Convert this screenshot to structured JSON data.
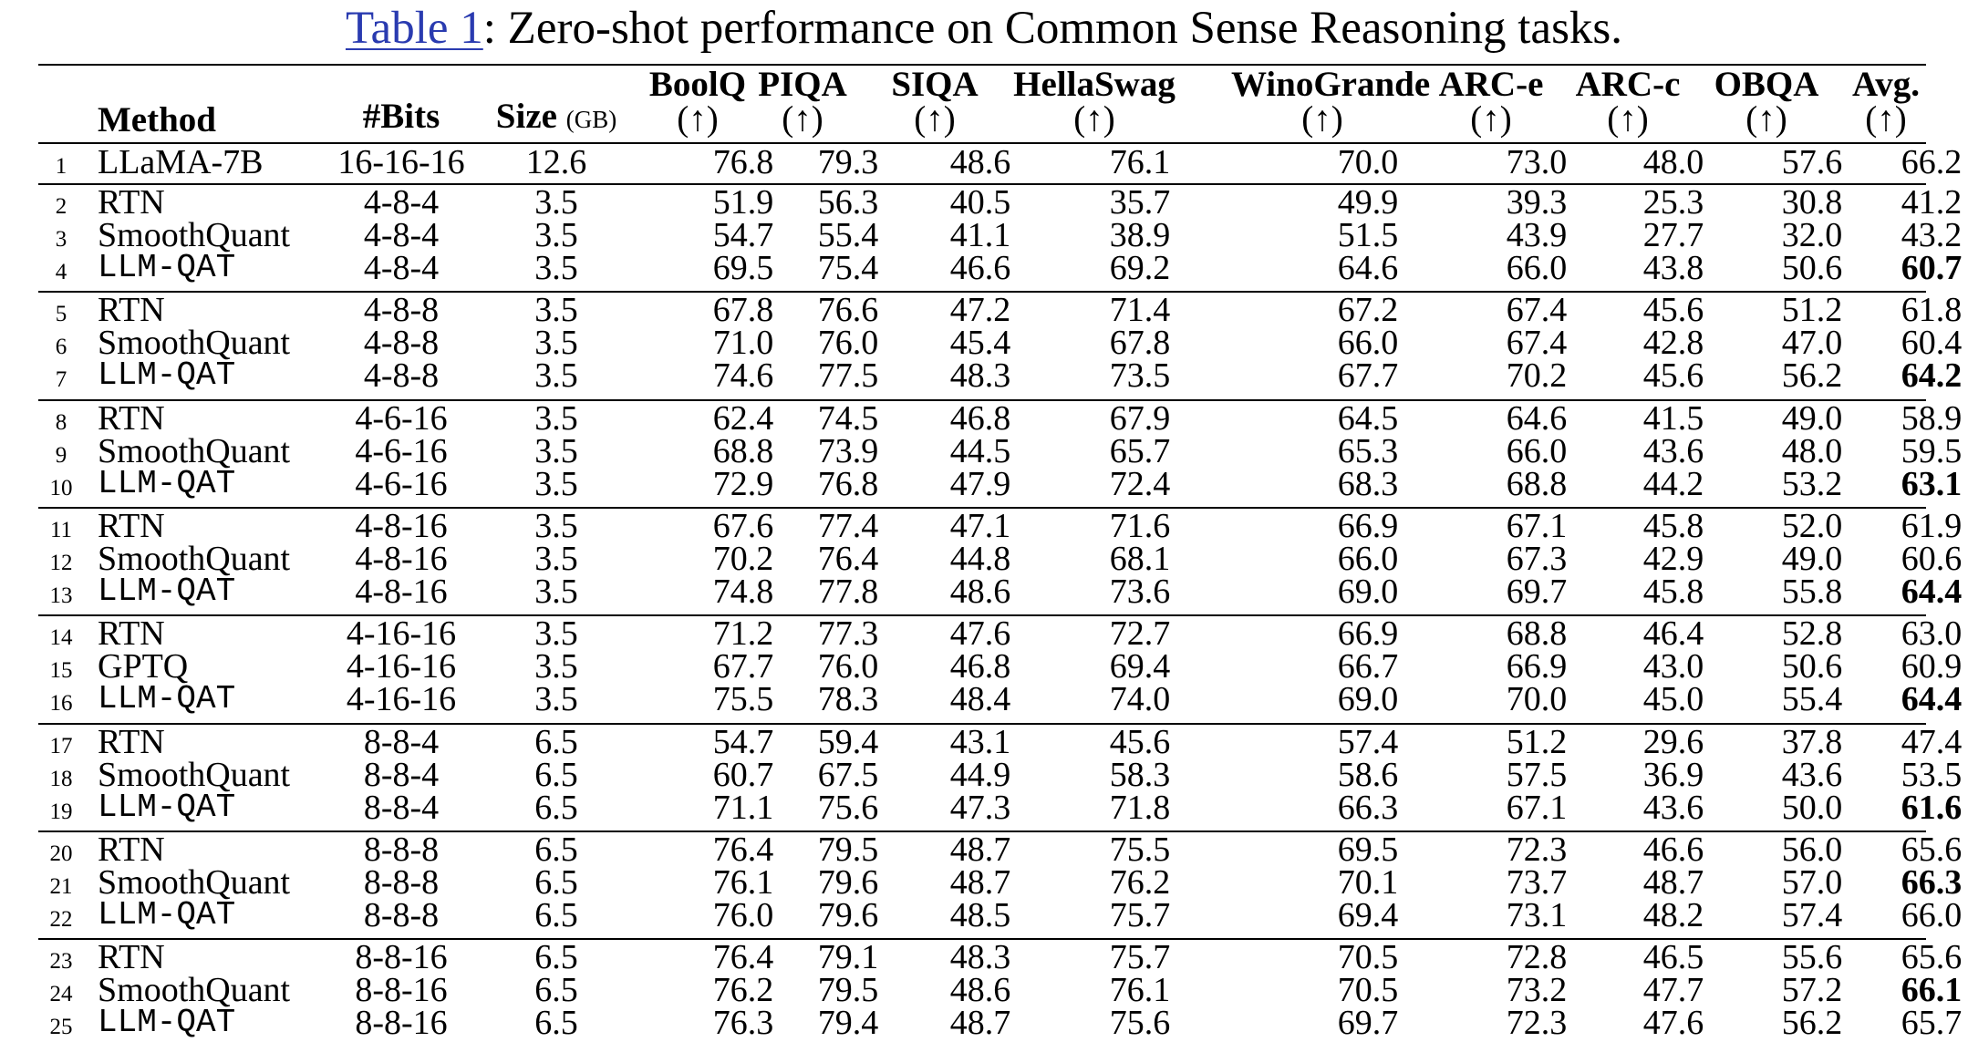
{
  "caption": {
    "ref": "Table 1",
    "text": ": Zero-shot performance on Common Sense Reasoning tasks."
  },
  "header": {
    "method": "Method",
    "bits": "#Bits",
    "size": "Size",
    "size_unit": "(GB)",
    "tasks": [
      "BoolQ",
      "PIQA",
      "SIQA",
      "HellaSwag",
      "WinoGrande",
      "ARC-e",
      "ARC-c",
      "OBQA",
      "Avg."
    ],
    "arrow": "(↑)"
  },
  "rows": [
    {
      "n": "1",
      "method": "LLaMA-7B",
      "mono": false,
      "bits": "16-16-16",
      "size": "12.6",
      "vals": [
        "76.8",
        "79.3",
        "48.6",
        "76.1",
        "70.0",
        "73.0",
        "48.0",
        "57.6",
        "66.2"
      ],
      "bold_avg": false
    },
    {
      "n": "2",
      "method": "RTN",
      "mono": false,
      "bits": "4-8-4",
      "size": "3.5",
      "vals": [
        "51.9",
        "56.3",
        "40.5",
        "35.7",
        "49.9",
        "39.3",
        "25.3",
        "30.8",
        "41.2"
      ],
      "bold_avg": false
    },
    {
      "n": "3",
      "method": "SmoothQuant",
      "mono": false,
      "bits": "4-8-4",
      "size": "3.5",
      "vals": [
        "54.7",
        "55.4",
        "41.1",
        "38.9",
        "51.5",
        "43.9",
        "27.7",
        "32.0",
        "43.2"
      ],
      "bold_avg": false
    },
    {
      "n": "4",
      "method": "LLM-QAT",
      "mono": true,
      "bits": "4-8-4",
      "size": "3.5",
      "vals": [
        "69.5",
        "75.4",
        "46.6",
        "69.2",
        "64.6",
        "66.0",
        "43.8",
        "50.6",
        "60.7"
      ],
      "bold_avg": true
    },
    {
      "n": "5",
      "method": "RTN",
      "mono": false,
      "bits": "4-8-8",
      "size": "3.5",
      "vals": [
        "67.8",
        "76.6",
        "47.2",
        "71.4",
        "67.2",
        "67.4",
        "45.6",
        "51.2",
        "61.8"
      ],
      "bold_avg": false
    },
    {
      "n": "6",
      "method": "SmoothQuant",
      "mono": false,
      "bits": "4-8-8",
      "size": "3.5",
      "vals": [
        "71.0",
        "76.0",
        "45.4",
        "67.8",
        "66.0",
        "67.4",
        "42.8",
        "47.0",
        "60.4"
      ],
      "bold_avg": false
    },
    {
      "n": "7",
      "method": "LLM-QAT",
      "mono": true,
      "bits": "4-8-8",
      "size": "3.5",
      "vals": [
        "74.6",
        "77.5",
        "48.3",
        "73.5",
        "67.7",
        "70.2",
        "45.6",
        "56.2",
        "64.2"
      ],
      "bold_avg": true
    },
    {
      "n": "8",
      "method": "RTN",
      "mono": false,
      "bits": "4-6-16",
      "size": "3.5",
      "vals": [
        "62.4",
        "74.5",
        "46.8",
        "67.9",
        "64.5",
        "64.6",
        "41.5",
        "49.0",
        "58.9"
      ],
      "bold_avg": false
    },
    {
      "n": "9",
      "method": "SmoothQuant",
      "mono": false,
      "bits": "4-6-16",
      "size": "3.5",
      "vals": [
        "68.8",
        "73.9",
        "44.5",
        "65.7",
        "65.3",
        "66.0",
        "43.6",
        "48.0",
        "59.5"
      ],
      "bold_avg": false
    },
    {
      "n": "10",
      "method": "LLM-QAT",
      "mono": true,
      "bits": "4-6-16",
      "size": "3.5",
      "vals": [
        "72.9",
        "76.8",
        "47.9",
        "72.4",
        "68.3",
        "68.8",
        "44.2",
        "53.2",
        "63.1"
      ],
      "bold_avg": true
    },
    {
      "n": "11",
      "method": "RTN",
      "mono": false,
      "bits": "4-8-16",
      "size": "3.5",
      "vals": [
        "67.6",
        "77.4",
        "47.1",
        "71.6",
        "66.9",
        "67.1",
        "45.8",
        "52.0",
        "61.9"
      ],
      "bold_avg": false
    },
    {
      "n": "12",
      "method": "SmoothQuant",
      "mono": false,
      "bits": "4-8-16",
      "size": "3.5",
      "vals": [
        "70.2",
        "76.4",
        "44.8",
        "68.1",
        "66.0",
        "67.3",
        "42.9",
        "49.0",
        "60.6"
      ],
      "bold_avg": false
    },
    {
      "n": "13",
      "method": "LLM-QAT",
      "mono": true,
      "bits": "4-8-16",
      "size": "3.5",
      "vals": [
        "74.8",
        "77.8",
        "48.6",
        "73.6",
        "69.0",
        "69.7",
        "45.8",
        "55.8",
        "64.4"
      ],
      "bold_avg": true
    },
    {
      "n": "14",
      "method": "RTN",
      "mono": false,
      "bits": "4-16-16",
      "size": "3.5",
      "vals": [
        "71.2",
        "77.3",
        "47.6",
        "72.7",
        "66.9",
        "68.8",
        "46.4",
        "52.8",
        "63.0"
      ],
      "bold_avg": false
    },
    {
      "n": "15",
      "method": "GPTQ",
      "mono": false,
      "bits": "4-16-16",
      "size": "3.5",
      "vals": [
        "67.7",
        "76.0",
        "46.8",
        "69.4",
        "66.7",
        "66.9",
        "43.0",
        "50.6",
        "60.9"
      ],
      "bold_avg": false
    },
    {
      "n": "16",
      "method": "LLM-QAT",
      "mono": true,
      "bits": "4-16-16",
      "size": "3.5",
      "vals": [
        "75.5",
        "78.3",
        "48.4",
        "74.0",
        "69.0",
        "70.0",
        "45.0",
        "55.4",
        "64.4"
      ],
      "bold_avg": true
    },
    {
      "n": "17",
      "method": "RTN",
      "mono": false,
      "bits": "8-8-4",
      "size": "6.5",
      "vals": [
        "54.7",
        "59.4",
        "43.1",
        "45.6",
        "57.4",
        "51.2",
        "29.6",
        "37.8",
        "47.4"
      ],
      "bold_avg": false
    },
    {
      "n": "18",
      "method": "SmoothQuant",
      "mono": false,
      "bits": "8-8-4",
      "size": "6.5",
      "vals": [
        "60.7",
        "67.5",
        "44.9",
        "58.3",
        "58.6",
        "57.5",
        "36.9",
        "43.6",
        "53.5"
      ],
      "bold_avg": false
    },
    {
      "n": "19",
      "method": "LLM-QAT",
      "mono": true,
      "bits": "8-8-4",
      "size": "6.5",
      "vals": [
        "71.1",
        "75.6",
        "47.3",
        "71.8",
        "66.3",
        "67.1",
        "43.6",
        "50.0",
        "61.6"
      ],
      "bold_avg": true
    },
    {
      "n": "20",
      "method": "RTN",
      "mono": false,
      "bits": "8-8-8",
      "size": "6.5",
      "vals": [
        "76.4",
        "79.5",
        "48.7",
        "75.5",
        "69.5",
        "72.3",
        "46.6",
        "56.0",
        "65.6"
      ],
      "bold_avg": false
    },
    {
      "n": "21",
      "method": "SmoothQuant",
      "mono": false,
      "bits": "8-8-8",
      "size": "6.5",
      "vals": [
        "76.1",
        "79.6",
        "48.7",
        "76.2",
        "70.1",
        "73.7",
        "48.7",
        "57.0",
        "66.3"
      ],
      "bold_avg": true
    },
    {
      "n": "22",
      "method": "LLM-QAT",
      "mono": true,
      "bits": "8-8-8",
      "size": "6.5",
      "vals": [
        "76.0",
        "79.6",
        "48.5",
        "75.7",
        "69.4",
        "73.1",
        "48.2",
        "57.4",
        "66.0"
      ],
      "bold_avg": false
    },
    {
      "n": "23",
      "method": "RTN",
      "mono": false,
      "bits": "8-8-16",
      "size": "6.5",
      "vals": [
        "76.4",
        "79.1",
        "48.3",
        "75.7",
        "70.5",
        "72.8",
        "46.5",
        "55.6",
        "65.6"
      ],
      "bold_avg": false
    },
    {
      "n": "24",
      "method": "SmoothQuant",
      "mono": false,
      "bits": "8-8-16",
      "size": "6.5",
      "vals": [
        "76.2",
        "79.5",
        "48.6",
        "76.1",
        "70.5",
        "73.2",
        "47.7",
        "57.2",
        "66.1"
      ],
      "bold_avg": true
    },
    {
      "n": "25",
      "method": "LLM-QAT",
      "mono": true,
      "bits": "8-8-16",
      "size": "6.5",
      "vals": [
        "76.3",
        "79.4",
        "48.7",
        "75.6",
        "69.7",
        "72.3",
        "47.6",
        "56.2",
        "65.7"
      ],
      "bold_avg": false
    }
  ]
}
